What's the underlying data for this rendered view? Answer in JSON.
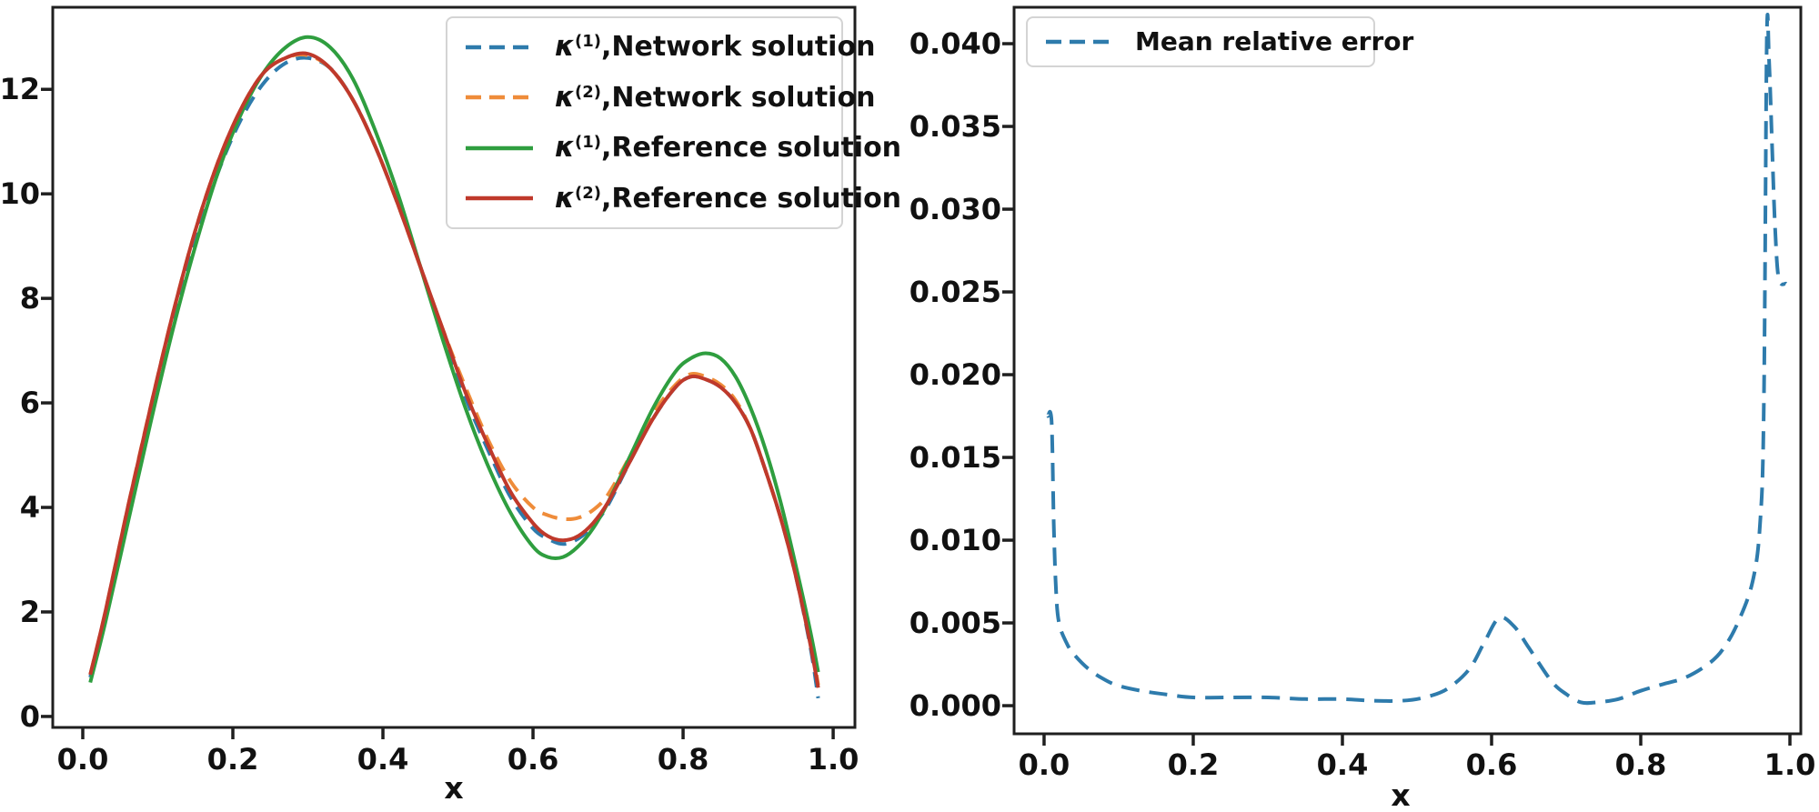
{
  "figure": {
    "background": "#ffffff",
    "spine_color": "#1f1f1f",
    "tick_label_color": "#111111",
    "accent_colors": {
      "blue": "#2e7bac",
      "orange": "#ef8c3a",
      "green": "#2f9e3f",
      "red": "#bf392b"
    }
  },
  "chart_data": [
    {
      "type": "line",
      "title": "",
      "xlabel": "x",
      "ylabel": "",
      "grid": false,
      "legend_position": "upper right inside",
      "xlim": [
        -0.04,
        1.029
      ],
      "ylim": [
        -0.21,
        13.57
      ],
      "x_ticks": [
        0.0,
        0.2,
        0.4,
        0.6,
        0.8,
        1.0
      ],
      "x_tick_labels": [
        "0.0",
        "0.2",
        "0.4",
        "0.6",
        "0.8",
        "1.0"
      ],
      "y_ticks": [
        0,
        2,
        4,
        6,
        8,
        10,
        12
      ],
      "y_tick_labels": [
        "0",
        "2",
        "4",
        "6",
        "8",
        "10",
        "12"
      ],
      "x": [
        0.01,
        0.03,
        0.06,
        0.09,
        0.12,
        0.15,
        0.18,
        0.21,
        0.24,
        0.27,
        0.3,
        0.33,
        0.36,
        0.39,
        0.42,
        0.45,
        0.48,
        0.51,
        0.54,
        0.57,
        0.6,
        0.62,
        0.64,
        0.66,
        0.68,
        0.7,
        0.73,
        0.76,
        0.79,
        0.81,
        0.83,
        0.85,
        0.87,
        0.89,
        0.91,
        0.93,
        0.95,
        0.97,
        0.98
      ],
      "series": [
        {
          "name": "κ(1),Network solution",
          "legend": {
            "kappa": "κ",
            "sup": "(1)",
            "rest": ",Network solution"
          },
          "color": "#2e7bac",
          "dashed": true,
          "values": [
            0.75,
            1.95,
            3.9,
            5.8,
            7.6,
            9.1,
            10.4,
            11.4,
            12.1,
            12.5,
            12.6,
            12.4,
            11.8,
            10.9,
            9.8,
            8.6,
            7.3,
            6.1,
            5.1,
            4.2,
            3.6,
            3.4,
            3.3,
            3.4,
            3.65,
            4.05,
            4.9,
            5.7,
            6.3,
            6.5,
            6.45,
            6.3,
            6.0,
            5.5,
            4.7,
            3.8,
            2.7,
            1.3,
            0.35
          ]
        },
        {
          "name": "κ(2),Network solution",
          "legend": {
            "kappa": "κ",
            "sup": "(2)",
            "rest": ",Network solution"
          },
          "color": "#ef8c3a",
          "dashed": true,
          "values": [
            0.8,
            2.0,
            4.0,
            5.9,
            7.7,
            9.3,
            10.6,
            11.6,
            12.3,
            12.6,
            12.65,
            12.4,
            11.8,
            10.9,
            9.8,
            8.6,
            7.4,
            6.3,
            5.3,
            4.5,
            4.0,
            3.85,
            3.78,
            3.8,
            3.95,
            4.25,
            5.0,
            5.8,
            6.35,
            6.55,
            6.5,
            6.35,
            6.05,
            5.5,
            4.7,
            3.8,
            2.75,
            1.45,
            0.6
          ]
        },
        {
          "name": "κ(1),Reference solution",
          "legend": {
            "kappa": "κ",
            "sup": "(1)",
            "rest": ",Reference solution"
          },
          "color": "#2f9e3f",
          "dashed": false,
          "values": [
            0.65,
            1.8,
            3.7,
            5.6,
            7.4,
            9.0,
            10.4,
            11.5,
            12.3,
            12.8,
            13.0,
            12.8,
            12.2,
            11.2,
            10.0,
            8.6,
            7.2,
            5.9,
            4.8,
            3.9,
            3.25,
            3.05,
            3.05,
            3.25,
            3.6,
            4.1,
            5.0,
            5.9,
            6.6,
            6.85,
            6.95,
            6.85,
            6.5,
            5.9,
            5.1,
            4.1,
            2.9,
            1.6,
            0.85
          ]
        },
        {
          "name": "κ(2),Reference solution",
          "legend": {
            "kappa": "κ",
            "sup": "(2)",
            "rest": ",Reference solution"
          },
          "color": "#bf392b",
          "dashed": false,
          "values": [
            0.8,
            2.0,
            4.0,
            5.9,
            7.7,
            9.3,
            10.6,
            11.6,
            12.3,
            12.6,
            12.68,
            12.4,
            11.8,
            10.9,
            9.8,
            8.6,
            7.4,
            6.2,
            5.2,
            4.3,
            3.7,
            3.45,
            3.37,
            3.45,
            3.7,
            4.1,
            4.9,
            5.7,
            6.3,
            6.5,
            6.45,
            6.3,
            6.0,
            5.5,
            4.7,
            3.8,
            2.7,
            1.35,
            0.55
          ]
        }
      ]
    },
    {
      "type": "line",
      "title": "",
      "xlabel": "x",
      "ylabel": "",
      "grid": false,
      "legend_position": "upper left inside",
      "xlim": [
        -0.0402,
        1.0146
      ],
      "ylim": [
        -0.0017,
        0.0422
      ],
      "x_ticks": [
        0.0,
        0.2,
        0.4,
        0.6,
        0.8,
        1.0
      ],
      "x_tick_labels": [
        "0.0",
        "0.2",
        "0.4",
        "0.6",
        "0.8",
        "1.0"
      ],
      "y_ticks": [
        0.0,
        0.005,
        0.01,
        0.015,
        0.02,
        0.025,
        0.03,
        0.035,
        0.04
      ],
      "y_tick_labels": [
        "0.000",
        "0.005",
        "0.010",
        "0.015",
        "0.020",
        "0.025",
        "0.030",
        "0.035",
        "0.040"
      ],
      "x": [
        0.005,
        0.01,
        0.013,
        0.016,
        0.02,
        0.03,
        0.04,
        0.06,
        0.08,
        0.1,
        0.13,
        0.16,
        0.2,
        0.25,
        0.3,
        0.35,
        0.4,
        0.44,
        0.48,
        0.51,
        0.54,
        0.57,
        0.59,
        0.61,
        0.63,
        0.65,
        0.68,
        0.7,
        0.72,
        0.74,
        0.77,
        0.8,
        0.83,
        0.86,
        0.89,
        0.91,
        0.93,
        0.95,
        0.96,
        0.965,
        0.969,
        0.972,
        0.976,
        0.98,
        0.985,
        0.995
      ],
      "series": [
        {
          "name": "Mean relative error",
          "legend": {
            "label": "Mean relative error"
          },
          "color": "#2e7bac",
          "dashed": true,
          "values": [
            0.0175,
            0.0172,
            0.011,
            0.007,
            0.005,
            0.0038,
            0.0031,
            0.0022,
            0.0016,
            0.0012,
            0.0009,
            0.0007,
            0.0005,
            0.0005,
            0.0005,
            0.0004,
            0.0004,
            0.0003,
            0.0003,
            0.0005,
            0.001,
            0.0022,
            0.0038,
            0.0053,
            0.0048,
            0.0035,
            0.0015,
            0.0007,
            0.0002,
            0.0002,
            0.0004,
            0.0009,
            0.0013,
            0.0017,
            0.0025,
            0.0034,
            0.005,
            0.0075,
            0.011,
            0.018,
            0.0403,
            0.039,
            0.034,
            0.029,
            0.0258,
            0.0255
          ]
        }
      ]
    }
  ]
}
